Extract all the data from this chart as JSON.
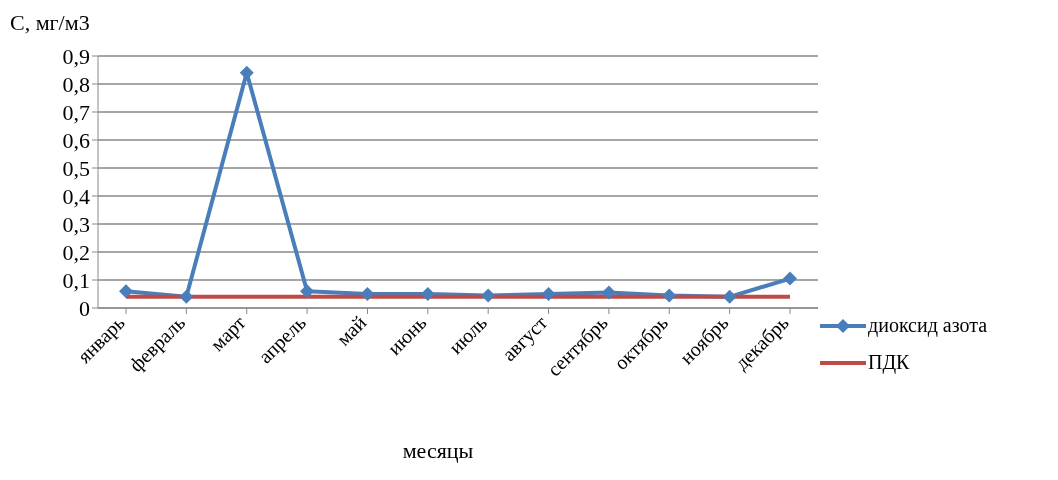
{
  "chart_data": {
    "type": "line",
    "ylabel": "C, мг/м3",
    "xlabel": "месяцы",
    "categories": [
      "январь",
      "февраль",
      "март",
      "апрель",
      "май",
      "июнь",
      "июль",
      "август",
      "сентябрь",
      "октябрь",
      "ноябрь",
      "декабрь"
    ],
    "series": [
      {
        "name": "диоксид азота",
        "color": "#4a7ebb",
        "marker": "diamond",
        "values": [
          0.06,
          0.04,
          0.84,
          0.06,
          0.05,
          0.05,
          0.045,
          0.05,
          0.055,
          0.045,
          0.04,
          0.105
        ]
      },
      {
        "name": "ПДК",
        "color": "#be4b48",
        "marker": "none",
        "values": [
          0.04,
          0.04,
          0.04,
          0.04,
          0.04,
          0.04,
          0.04,
          0.04,
          0.04,
          0.04,
          0.04,
          0.04
        ]
      }
    ],
    "ylim": [
      0,
      0.9
    ],
    "yticks": [
      {
        "value": 0,
        "label": "0"
      },
      {
        "value": 0.1,
        "label": "0,1"
      },
      {
        "value": 0.2,
        "label": "0,2"
      },
      {
        "value": 0.3,
        "label": "0,3"
      },
      {
        "value": 0.4,
        "label": "0,4"
      },
      {
        "value": 0.5,
        "label": "0,5"
      },
      {
        "value": 0.6,
        "label": "0,6"
      },
      {
        "value": 0.7,
        "label": "0,7"
      },
      {
        "value": 0.8,
        "label": "0,8"
      },
      {
        "value": 0.9,
        "label": "0,9"
      }
    ],
    "grid": "y",
    "legend": "bottom right",
    "line_style": "solid"
  }
}
